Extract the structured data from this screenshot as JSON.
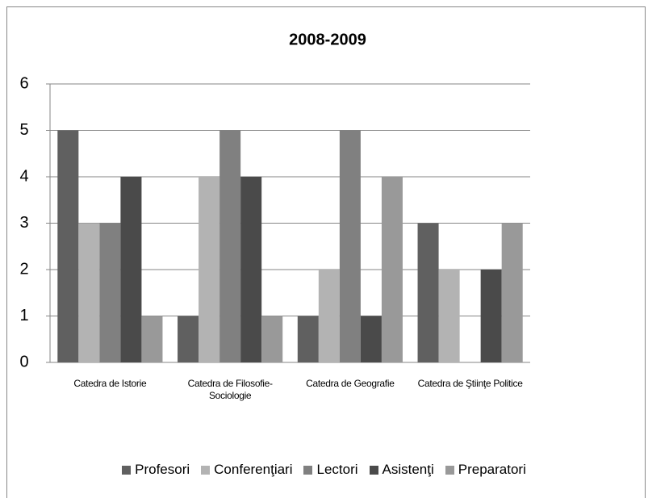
{
  "chart_data": {
    "type": "bar",
    "title": "2008-2009",
    "categories": [
      "Catedra de Istorie",
      "Catedra de Filosofie-Sociologie",
      "Catedra de Geografie",
      "Catedra de Ştiinţe Politice"
    ],
    "series": [
      {
        "name": "Profesori",
        "color": "#606060",
        "values": [
          5,
          1,
          1,
          3
        ]
      },
      {
        "name": "Conferenţiari",
        "color": "#b3b3b3",
        "values": [
          3,
          4,
          2,
          2
        ]
      },
      {
        "name": "Lectori",
        "color": "#808080",
        "values": [
          3,
          5,
          5,
          0
        ]
      },
      {
        "name": "Asistenţi",
        "color": "#4a4a4a",
        "values": [
          4,
          4,
          1,
          2
        ]
      },
      {
        "name": "Preparatori",
        "color": "#999999",
        "values": [
          1,
          1,
          4,
          3
        ]
      }
    ],
    "ylim": [
      0,
      6
    ],
    "yticks": [
      0,
      1,
      2,
      3,
      4,
      5,
      6
    ],
    "grid": true,
    "legend": "bottom"
  }
}
